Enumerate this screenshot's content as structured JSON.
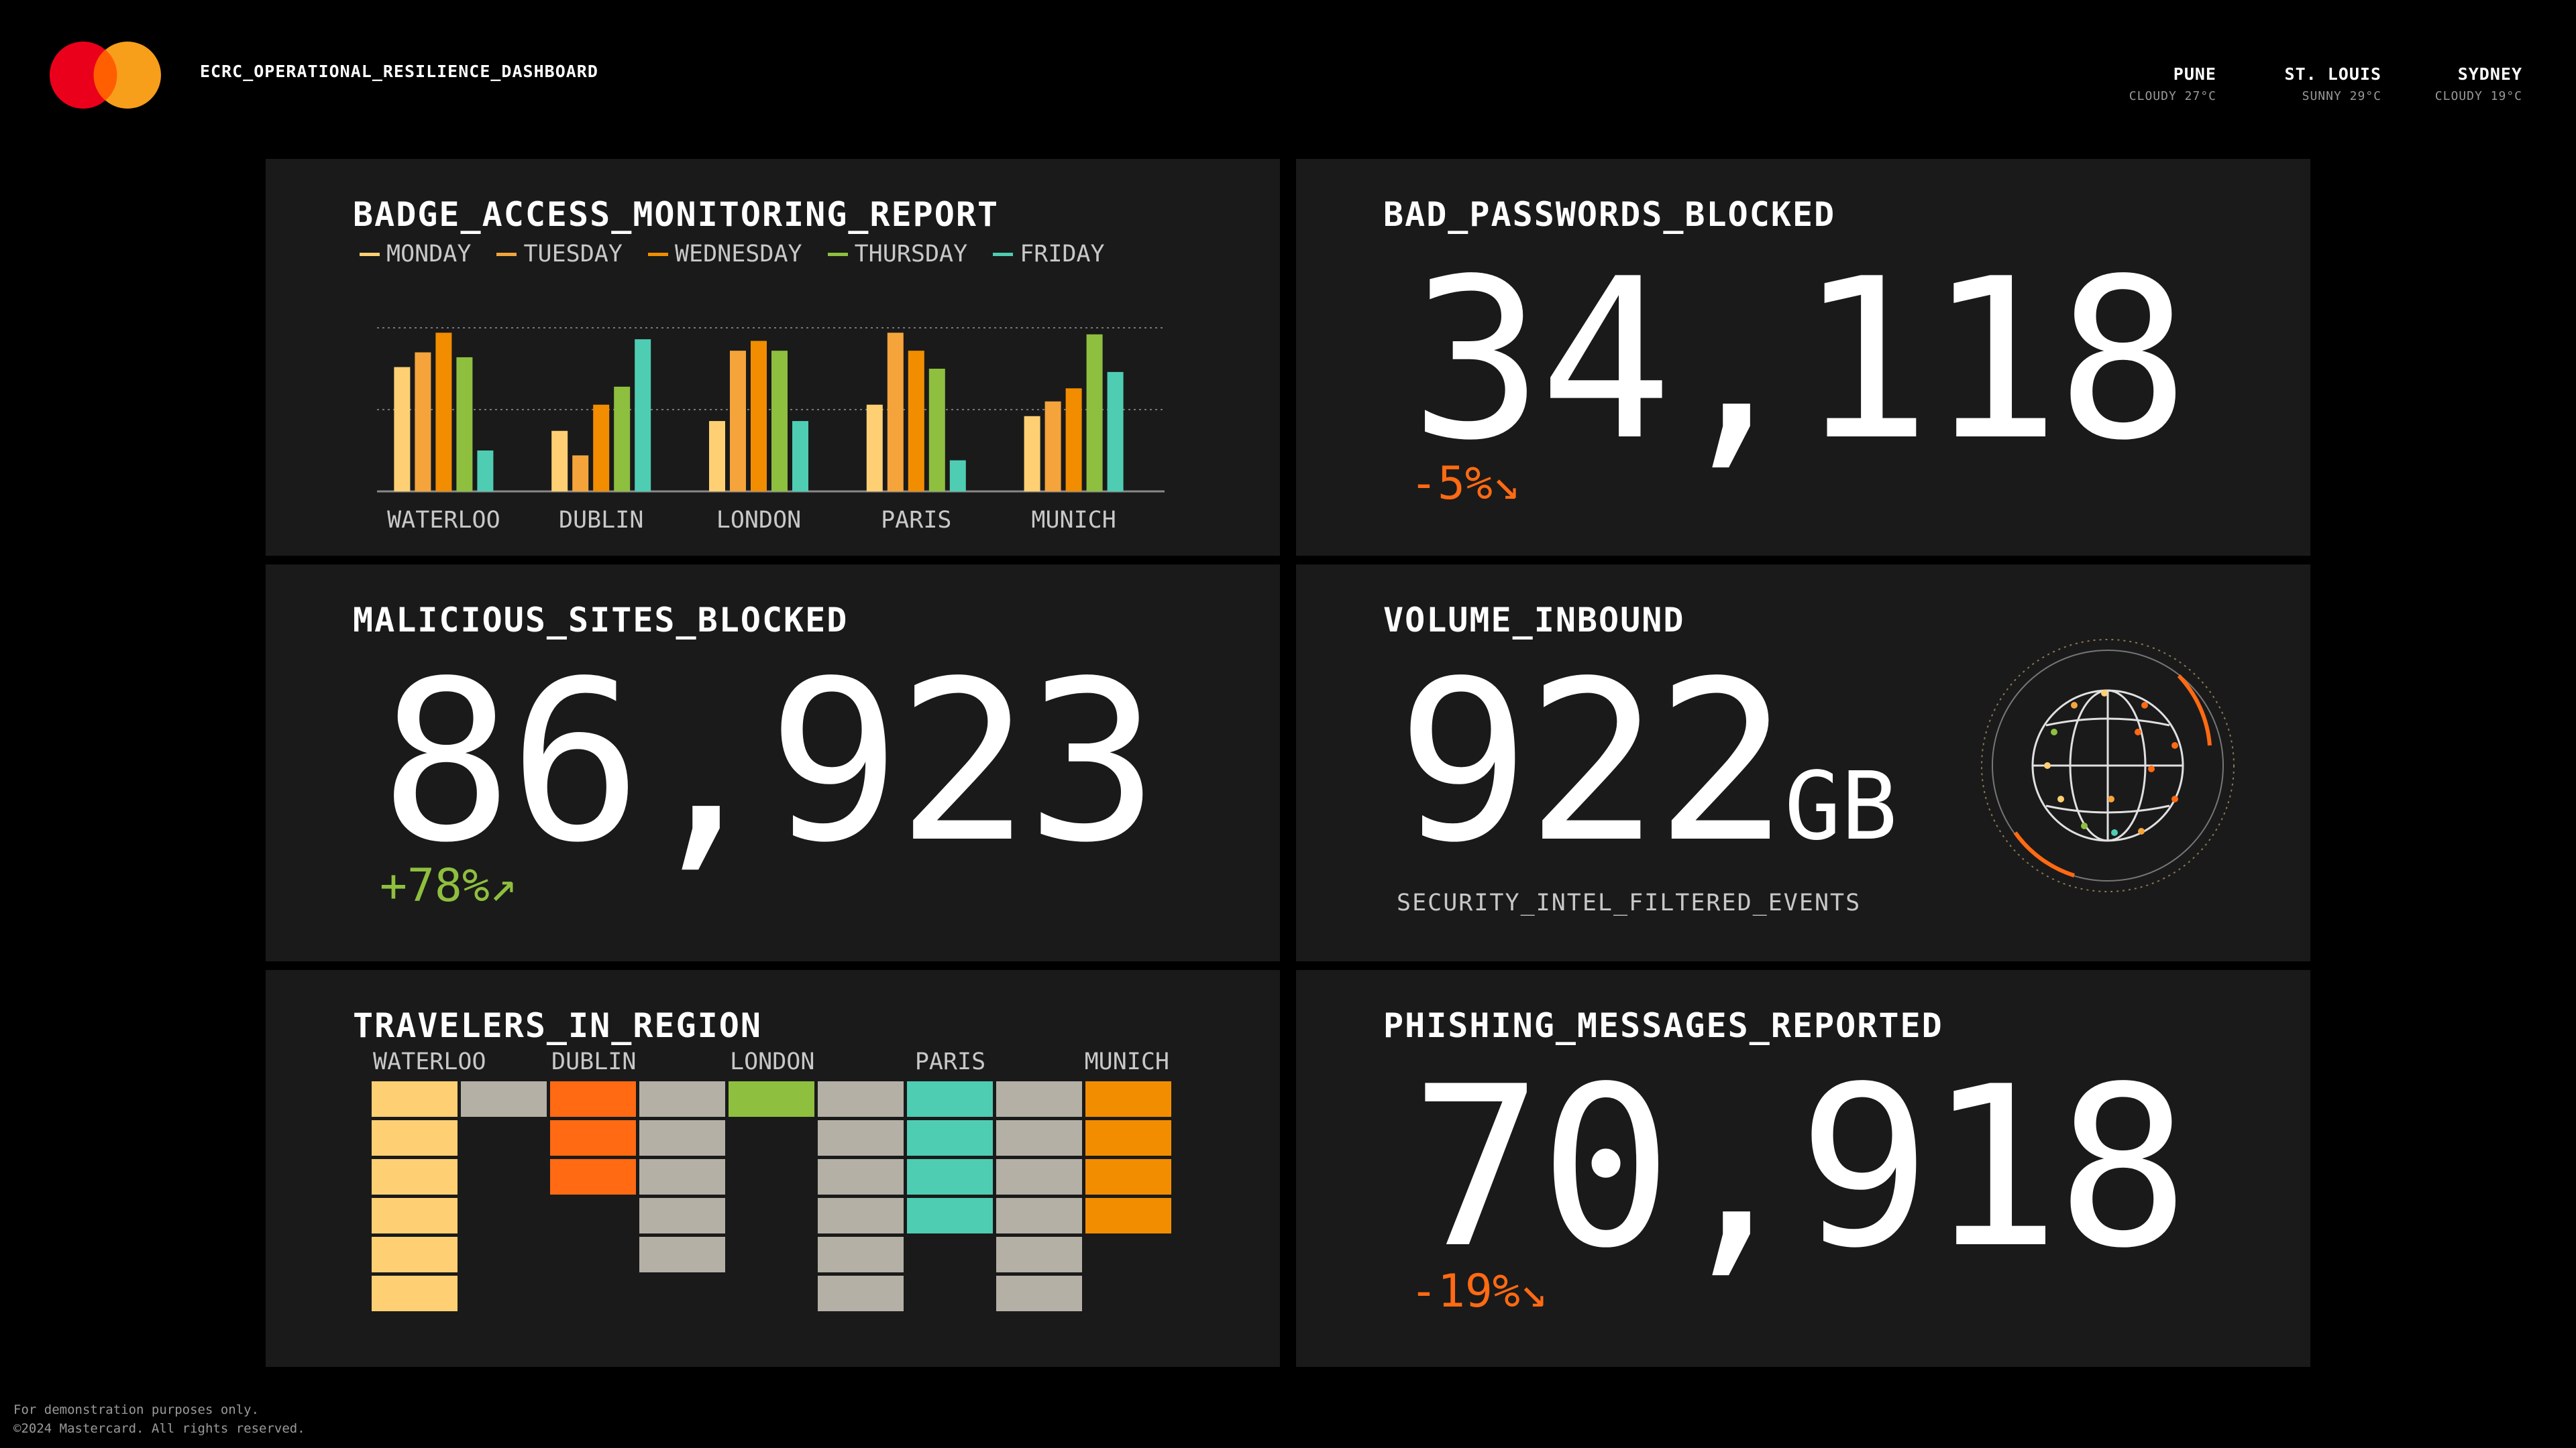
{
  "header": {
    "title": "ECRC_OPERATIONAL_RESILIENCE_DASHBOARD",
    "logo_icon": "mastercard-logo",
    "logo_colors": [
      "#eb001b",
      "#f79e1b",
      "#ff5f00"
    ],
    "cities": [
      {
        "name": "PUNE",
        "weather": "CLOUDY 27°C"
      },
      {
        "name": "ST. LOUIS",
        "weather": "SUNNY 29°C"
      },
      {
        "name": "SYDNEY",
        "weather": "CLOUDY 19°C"
      }
    ]
  },
  "colors": {
    "monday": "#ffd073",
    "tuesday": "#f5a43c",
    "wednesday": "#f28d00",
    "thursday": "#8ebf3f",
    "friday": "#4ecdb3",
    "negative": "#ff6a13",
    "positive": "#8ebf3f",
    "grey_cell": "#b5b0a6"
  },
  "badge_access": {
    "title": "BADGE_ACCESS_MONITORING_REPORT",
    "chart_data": {
      "type": "bar",
      "categories": [
        "WATERLOO",
        "DUBLIN",
        "LONDON",
        "PARIS",
        "MUNICH"
      ],
      "series": [
        {
          "name": "MONDAY",
          "values": [
            76,
            37,
            43,
            53,
            46
          ]
        },
        {
          "name": "TUESDAY",
          "values": [
            85,
            22,
            86,
            97,
            55
          ]
        },
        {
          "name": "WEDNESDAY",
          "values": [
            97,
            53,
            92,
            86,
            63
          ]
        },
        {
          "name": "THURSDAY",
          "values": [
            82,
            64,
            86,
            75,
            96
          ]
        },
        {
          "name": "FRIDAY",
          "values": [
            25,
            93,
            43,
            19,
            73
          ]
        }
      ],
      "ylim": [
        0,
        100
      ],
      "grid": true
    }
  },
  "bad_passwords": {
    "title": "BAD_PASSWORDS_BLOCKED",
    "value": "34,118",
    "change": "-5%↘"
  },
  "malicious_sites": {
    "title": "MALICIOUS_SITES_BLOCKED",
    "value": "86,923",
    "change": "+78%↗"
  },
  "volume_inbound": {
    "title": "VOLUME_INBOUND",
    "value": "922",
    "unit": "GB",
    "subtitle": "SECURITY_INTEL_FILTERED_EVENTS",
    "icon": "globe-icon"
  },
  "travelers": {
    "title": "TRAVELERS_IN_REGION",
    "chart_data": {
      "type": "bar",
      "categories": [
        "WATERLOO",
        "DUBLIN",
        "LONDON",
        "PARIS",
        "MUNICH"
      ],
      "columns": [
        {
          "region": "WATERLOO",
          "cells": 6,
          "highlight": true
        },
        {
          "region": "WATERLOO",
          "cells": 1,
          "highlight": false
        },
        {
          "region": "DUBLIN",
          "cells": 3,
          "highlight": true
        },
        {
          "region": "DUBLIN",
          "cells": 5,
          "highlight": false
        },
        {
          "region": "LONDON",
          "cells": 1,
          "highlight": true
        },
        {
          "region": "LONDON",
          "cells": 6,
          "highlight": false
        },
        {
          "region": "PARIS",
          "cells": 4,
          "highlight": true
        },
        {
          "region": "PARIS",
          "cells": 6,
          "highlight": false
        },
        {
          "region": "MUNICH",
          "cells": 4,
          "highlight": true
        }
      ]
    }
  },
  "phishing": {
    "title": "PHISHING_MESSAGES_REPORTED",
    "value": "70,918",
    "change": "-19%↘"
  },
  "footer": {
    "line1": "For demonstration purposes only.",
    "line2": "©2024 Mastercard. All rights reserved."
  }
}
